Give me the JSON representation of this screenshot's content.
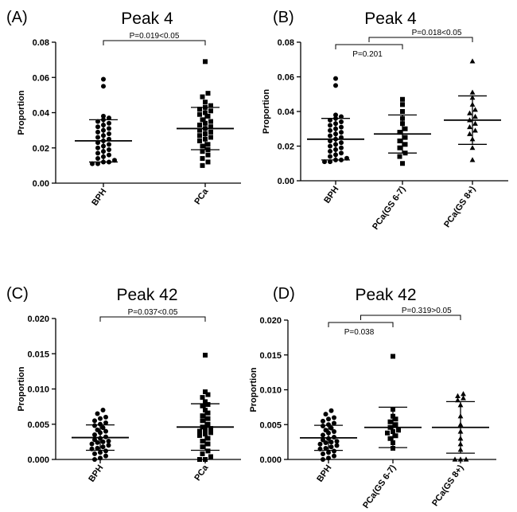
{
  "chart_data": [
    {
      "type": "scatter",
      "panel_label": "(A)",
      "title": "Peak 4",
      "ylabel": "Proportion",
      "ylim": [
        0,
        0.08
      ],
      "yticks": [
        "0.00",
        "0.02",
        "0.04",
        "0.06",
        "0.08"
      ],
      "categories": [
        "BPH",
        "PCa"
      ],
      "groups": [
        {
          "name": "BPH",
          "marker": "circle",
          "values": [
            0.059,
            0.055,
            0.038,
            0.037,
            0.036,
            0.035,
            0.034,
            0.033,
            0.032,
            0.031,
            0.03,
            0.029,
            0.028,
            0.027,
            0.026,
            0.025,
            0.024,
            0.023,
            0.022,
            0.021,
            0.02,
            0.019,
            0.018,
            0.017,
            0.016,
            0.015,
            0.014,
            0.013,
            0.012,
            0.012,
            0.011,
            0.011
          ],
          "mean": 0.024,
          "sd": 0.012
        },
        {
          "name": "PCa",
          "marker": "square",
          "values": [
            0.069,
            0.051,
            0.049,
            0.046,
            0.044,
            0.043,
            0.042,
            0.041,
            0.04,
            0.039,
            0.038,
            0.036,
            0.035,
            0.034,
            0.033,
            0.032,
            0.031,
            0.03,
            0.029,
            0.028,
            0.027,
            0.026,
            0.025,
            0.024,
            0.022,
            0.021,
            0.019,
            0.018,
            0.016,
            0.014,
            0.012,
            0.01
          ],
          "mean": 0.031,
          "sd": 0.012
        }
      ],
      "annotations": [
        {
          "text": "P=0.019<0.05",
          "from": 0,
          "to": 1,
          "level": 1
        }
      ]
    },
    {
      "type": "scatter",
      "panel_label": "(B)",
      "title": "Peak 4",
      "ylabel": "Proportion",
      "ylim": [
        0,
        0.08
      ],
      "yticks": [
        "0.00",
        "0.02",
        "0.04",
        "0.06",
        "0.08"
      ],
      "categories": [
        "BPH",
        "PCa(GS 6-7)",
        "PCa(GS 8+)"
      ],
      "groups": [
        {
          "name": "BPH",
          "marker": "circle",
          "values": [
            0.059,
            0.055,
            0.038,
            0.037,
            0.036,
            0.035,
            0.034,
            0.033,
            0.032,
            0.031,
            0.03,
            0.029,
            0.028,
            0.027,
            0.026,
            0.025,
            0.024,
            0.023,
            0.022,
            0.021,
            0.02,
            0.019,
            0.018,
            0.017,
            0.016,
            0.015,
            0.014,
            0.013,
            0.012,
            0.012,
            0.011,
            0.011
          ],
          "mean": 0.024,
          "sd": 0.012
        },
        {
          "name": "PCa(GS 6-7)",
          "marker": "square",
          "values": [
            0.047,
            0.044,
            0.04,
            0.036,
            0.033,
            0.03,
            0.028,
            0.025,
            0.023,
            0.021,
            0.019,
            0.016,
            0.014,
            0.01
          ],
          "mean": 0.027,
          "sd": 0.011
        },
        {
          "name": "PCa(GS 8+)",
          "marker": "triangle",
          "values": [
            0.069,
            0.051,
            0.048,
            0.044,
            0.041,
            0.039,
            0.037,
            0.035,
            0.033,
            0.031,
            0.029,
            0.027,
            0.024,
            0.019,
            0.012
          ],
          "mean": 0.035,
          "sd": 0.014
        }
      ],
      "annotations": [
        {
          "text": "P=0.201",
          "from": 0,
          "to": 1,
          "level": 1
        },
        {
          "text": "P=0.018<0.05",
          "from": 0.5,
          "to": 2,
          "level": 2
        }
      ]
    },
    {
      "type": "scatter",
      "panel_label": "(C)",
      "title": "Peak 42",
      "ylabel": "Proportion",
      "ylim": [
        0,
        0.02
      ],
      "yticks": [
        "0.000",
        "0.005",
        "0.010",
        "0.015",
        "0.020"
      ],
      "categories": [
        "BPH",
        "PCa"
      ],
      "groups": [
        {
          "name": "BPH",
          "marker": "circle",
          "values": [
            0.007,
            0.0065,
            0.006,
            0.0058,
            0.0055,
            0.0052,
            0.005,
            0.0048,
            0.0045,
            0.0042,
            0.004,
            0.0038,
            0.0035,
            0.0032,
            0.003,
            0.0028,
            0.0026,
            0.0025,
            0.0024,
            0.0022,
            0.002,
            0.0018,
            0.0016,
            0.0015,
            0.0012,
            0.001,
            0.0008,
            0.0005,
            0.0002,
            0.0
          ],
          "mean": 0.0031,
          "sd": 0.0018
        },
        {
          "name": "PCa",
          "marker": "square",
          "values": [
            0.0148,
            0.0096,
            0.0092,
            0.0088,
            0.0082,
            0.0078,
            0.0076,
            0.007,
            0.0066,
            0.0062,
            0.0058,
            0.0055,
            0.005,
            0.0046,
            0.0044,
            0.0042,
            0.004,
            0.0038,
            0.0036,
            0.0034,
            0.003,
            0.0026,
            0.0022,
            0.0018,
            0.0012,
            0.0008,
            0.0004,
            0.0,
            0.0
          ],
          "mean": 0.0046,
          "sd": 0.0033
        }
      ],
      "annotations": [
        {
          "text": "P=0.037<0.05",
          "from": 0,
          "to": 1,
          "level": 1
        }
      ]
    },
    {
      "type": "scatter",
      "panel_label": "(D)",
      "title": "Peak 42",
      "ylabel": "Proportion",
      "ylim": [
        0,
        0.02
      ],
      "yticks": [
        "0.000",
        "0.005",
        "0.010",
        "0.015",
        "0.020"
      ],
      "categories": [
        "BPH",
        "PCa(GS 6-7)",
        "PCa(GS 8+)"
      ],
      "groups": [
        {
          "name": "BPH",
          "marker": "circle",
          "values": [
            0.007,
            0.0065,
            0.006,
            0.0058,
            0.0055,
            0.0052,
            0.005,
            0.0048,
            0.0045,
            0.0042,
            0.004,
            0.0038,
            0.0035,
            0.0032,
            0.003,
            0.0028,
            0.0026,
            0.0025,
            0.0024,
            0.0022,
            0.002,
            0.0018,
            0.0016,
            0.0015,
            0.0012,
            0.001,
            0.0008,
            0.0005,
            0.0002,
            0.0
          ],
          "mean": 0.0031,
          "sd": 0.0018
        },
        {
          "name": "PCa(GS 6-7)",
          "marker": "square",
          "values": [
            0.0148,
            0.0072,
            0.0062,
            0.0058,
            0.0054,
            0.005,
            0.0046,
            0.0042,
            0.004,
            0.0038,
            0.0034,
            0.003,
            0.0024,
            0.0016
          ],
          "mean": 0.0046,
          "sd": 0.0029
        },
        {
          "name": "PCa(GS 8+)",
          "marker": "triangle",
          "values": [
            0.0094,
            0.0091,
            0.0088,
            0.0085,
            0.0078,
            0.0062,
            0.005,
            0.004,
            0.003,
            0.0022,
            0.0014,
            0.0,
            0.0,
            0.0
          ],
          "mean": 0.0046,
          "sd": 0.0037
        }
      ],
      "annotations": [
        {
          "text": "P=0.038",
          "from": 0,
          "to": 1,
          "level": 1
        },
        {
          "text": "P=0.319>0.05",
          "from": 0.5,
          "to": 2,
          "level": 2
        }
      ]
    }
  ]
}
